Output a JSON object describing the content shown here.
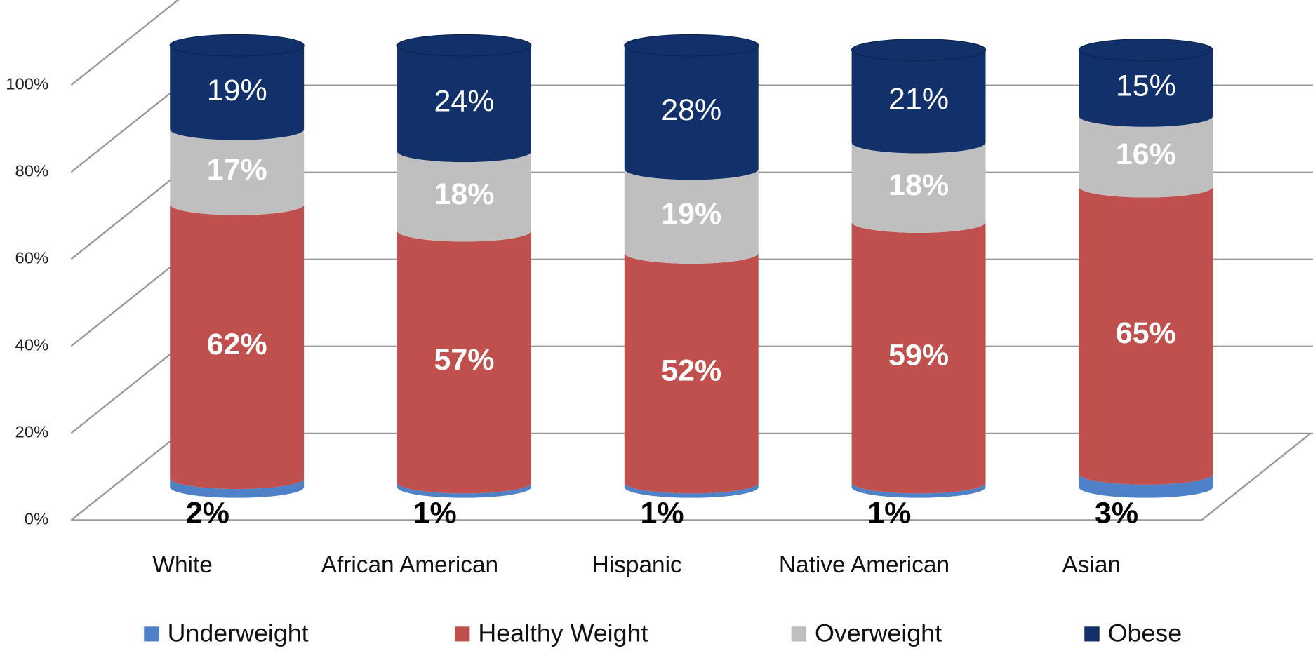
{
  "chart_data": {
    "type": "stacked_bar_3d",
    "categories": [
      "White",
      "African American",
      "Hispanic",
      "Native American",
      "Asian"
    ],
    "series": [
      {
        "name": "Underweight",
        "color": "#4f81c9",
        "values": [
          2,
          1,
          1,
          1,
          3
        ],
        "value_labels": [
          "2%",
          "1%",
          "1%",
          "1%",
          "3%"
        ]
      },
      {
        "name": "Healthy Weight",
        "color": "#c0504d",
        "values": [
          62,
          57,
          52,
          59,
          65
        ],
        "value_labels": [
          "62%",
          "57%",
          "52%",
          "59%",
          "65%"
        ]
      },
      {
        "name": "Overweight",
        "color": "#bfbfbf",
        "values": [
          17,
          18,
          19,
          18,
          16
        ],
        "value_labels": [
          "17%",
          "18%",
          "19%",
          "18%",
          "16%"
        ]
      },
      {
        "name": "Obese",
        "color": "#12316a",
        "values": [
          19,
          24,
          28,
          21,
          15
        ],
        "value_labels": [
          "19%",
          "24%",
          "28%",
          "21%",
          "15%"
        ]
      }
    ],
    "ylim": [
      0,
      100
    ],
    "yticks": [
      {
        "value": 0,
        "label": "0%"
      },
      {
        "value": 20,
        "label": "20%"
      },
      {
        "value": 40,
        "label": "40%"
      },
      {
        "value": 60,
        "label": "60%"
      },
      {
        "value": 80,
        "label": "80%"
      },
      {
        "value": 100,
        "label": "100%"
      }
    ],
    "grid": true,
    "legend": "bottom"
  }
}
